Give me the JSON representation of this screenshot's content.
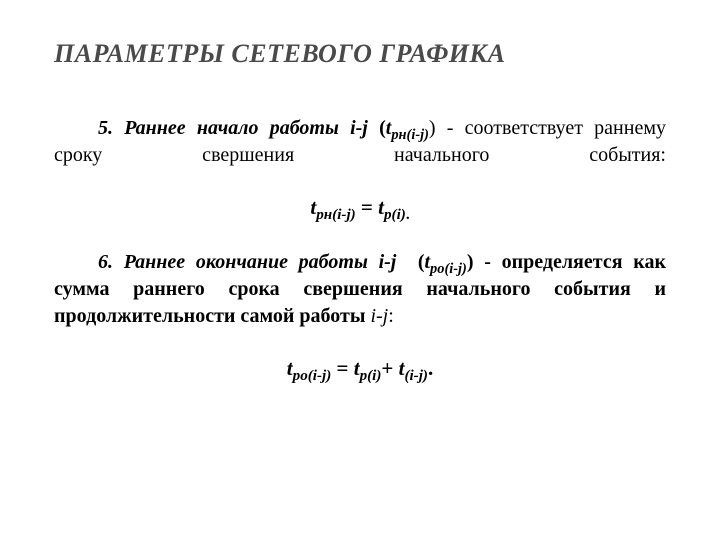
{
  "title": {
    "text": "ПАРАМЕТРЫ СЕТЕВОГО ГРАФИКА",
    "color": "#4a4a4a",
    "fontsize": 26
  },
  "body": {
    "fontsize": 20,
    "text_color": "#000000",
    "background_color": "#ffffff"
  },
  "inline": {
    "i_j": "i-j",
    "t_rn_ij": "t",
    "t_rn_ij_sub": "рн(i-j)",
    "t_ro_ij": "t",
    "t_ro_ij_sub": "ро(i-j)",
    "t_p_i": "t",
    "t_p_i_sub": "р(i)",
    "t_ij": "t",
    "t_ij_sub": "(i-j)",
    "point5_lead": "5. Раннее начало работы ",
    "point5_after_symbol": ") -  соответствует раннему сроку свершения начального события:",
    "point6_lead": "6. Раннее окончание работы ",
    "point6_after_symbol": ") - определяется как сумма раннего срока свершения начального события и продолжительности самой работы ",
    "open_paren": "(",
    "close_colon": ":",
    "eq": " = ",
    "plus": "+ ",
    "period": "."
  }
}
